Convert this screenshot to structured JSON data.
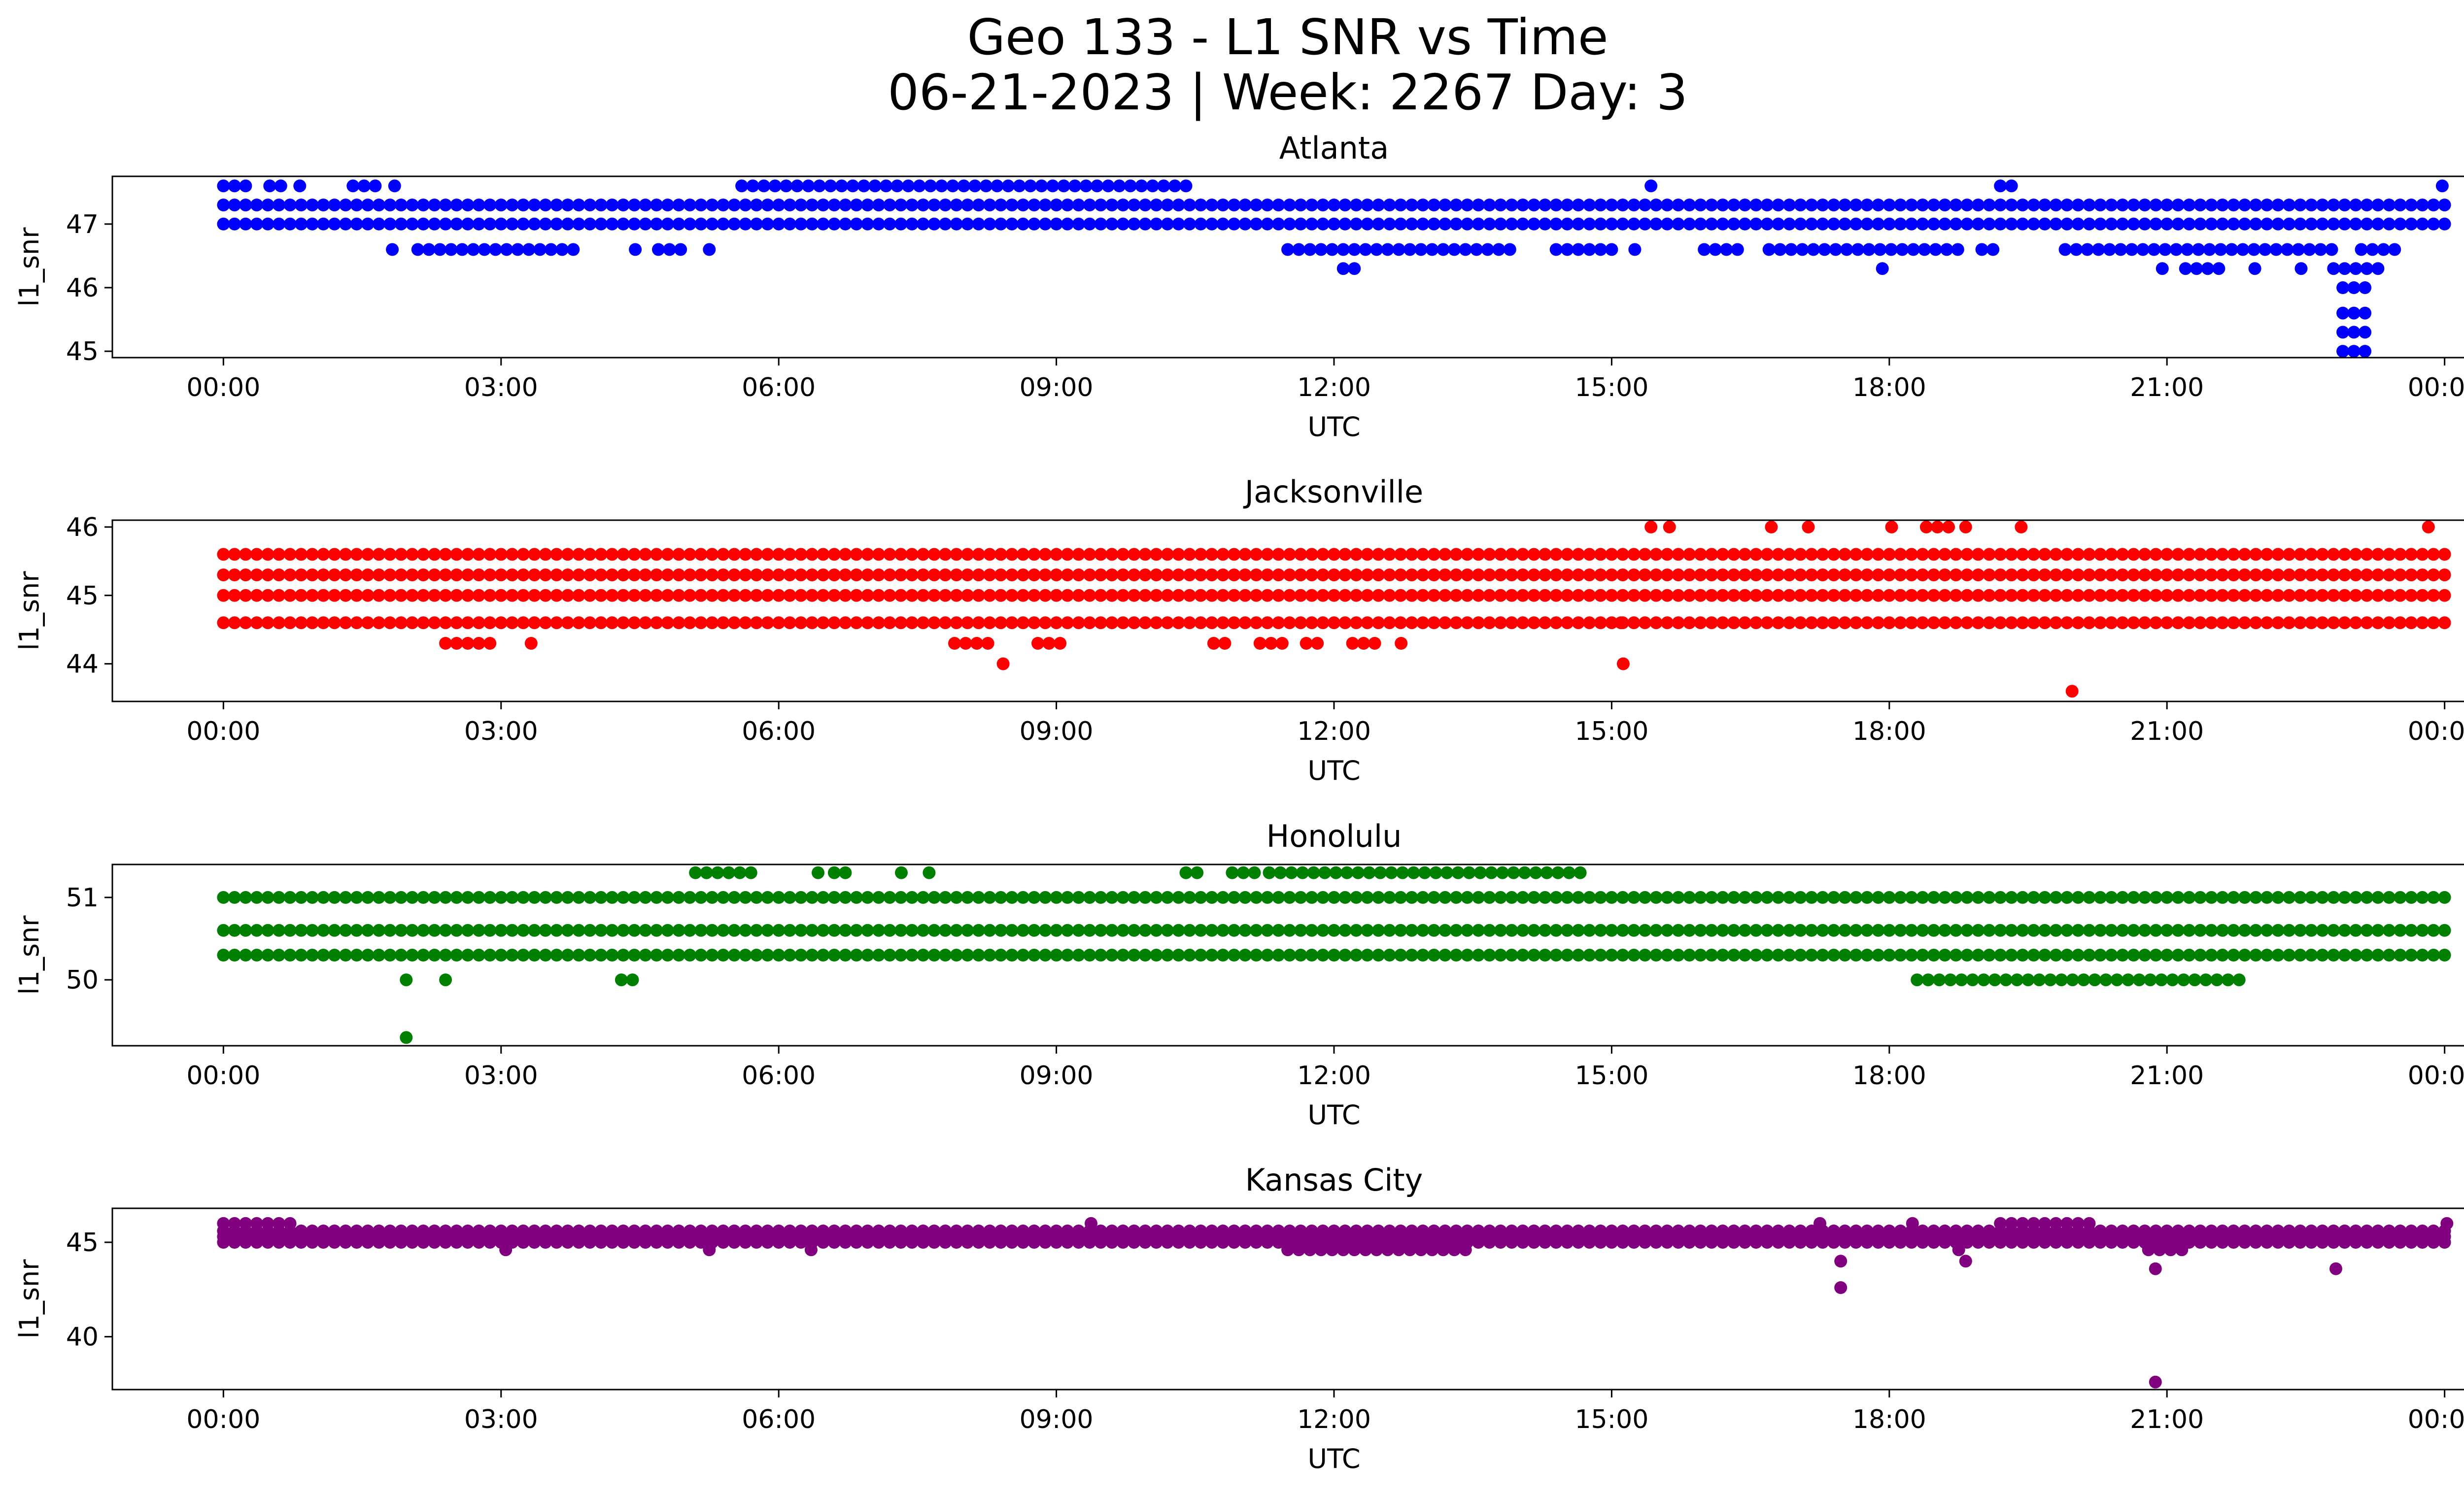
{
  "figure": {
    "title_line1": "Geo 133 - L1 SNR vs Time",
    "title_line2": "06-21-2023 | Week: 2267 Day: 3"
  },
  "chart_data": [
    {
      "type": "scatter",
      "title": "Atlanta",
      "xlabel": "UTC",
      "ylabel": "l1_snr",
      "color": "#0000ff",
      "xlim_hours": [
        -1.2,
        25.2
      ],
      "ylim": [
        44.9,
        47.75
      ],
      "xticks": [
        "00:00",
        "03:00",
        "06:00",
        "09:00",
        "12:00",
        "15:00",
        "18:00",
        "21:00",
        "00:00"
      ],
      "yticks": [
        45,
        46,
        47
      ],
      "levels": [
        47.0,
        47.3
      ],
      "runs": [
        {
          "y": 47.6,
          "ranges": [
            [
              0.0,
              0.25
            ],
            [
              0.5,
              0.65
            ],
            [
              0.8,
              0.85
            ],
            [
              1.4,
              1.7
            ],
            [
              1.8,
              1.9
            ],
            [
              5.6,
              10.5
            ],
            [
              15.4,
              15.45
            ],
            [
              19.2,
              19.4
            ],
            [
              23.95,
              24.0
            ]
          ]
        },
        {
          "y": 46.6,
          "ranges": [
            [
              1.8,
              1.85
            ],
            [
              2.1,
              3.8
            ],
            [
              4.4,
              4.5
            ],
            [
              4.7,
              5.0
            ],
            [
              5.2,
              5.3
            ],
            [
              11.5,
              14.0
            ],
            [
              14.4,
              15.0
            ],
            [
              15.2,
              15.3
            ],
            [
              16.0,
              16.4
            ],
            [
              16.7,
              17.8
            ],
            [
              17.9,
              18.8
            ],
            [
              19.0,
              19.2
            ],
            [
              19.9,
              22.8
            ],
            [
              23.1,
              23.5
            ]
          ]
        },
        {
          "y": 46.3,
          "ranges": [
            [
              12.1,
              12.3
            ],
            [
              20.9,
              21.0
            ],
            [
              21.2,
              21.6
            ],
            [
              21.9,
              22.0
            ],
            [
              22.4,
              22.5
            ],
            [
              22.8,
              23.3
            ]
          ]
        },
        {
          "y": 46.3,
          "ranges": [
            [
              17.9,
              17.95
            ]
          ]
        },
        {
          "y": 46.0,
          "ranges": [
            [
              22.9,
              23.2
            ]
          ]
        },
        {
          "y": 45.6,
          "ranges": [
            [
              22.9,
              23.2
            ]
          ]
        },
        {
          "y": 45.3,
          "ranges": [
            [
              22.9,
              23.2
            ]
          ]
        },
        {
          "y": 45.0,
          "ranges": [
            [
              22.9,
              23.2
            ]
          ]
        }
      ]
    },
    {
      "type": "scatter",
      "title": "Jacksonville",
      "xlabel": "UTC",
      "ylabel": "l1_snr",
      "color": "#ff0000",
      "xlim_hours": [
        -1.2,
        25.2
      ],
      "ylim": [
        43.45,
        46.1
      ],
      "xticks": [
        "00:00",
        "03:00",
        "06:00",
        "09:00",
        "12:00",
        "15:00",
        "18:00",
        "21:00",
        "00:00"
      ],
      "yticks": [
        44,
        45,
        46
      ],
      "levels": [
        45.0,
        45.3,
        45.6,
        44.6
      ],
      "runs": [
        {
          "y": 46.0,
          "ranges": [
            [
              15.4,
              15.45
            ],
            [
              15.6,
              15.65
            ],
            [
              16.7,
              16.75
            ],
            [
              17.1,
              17.15
            ],
            [
              18.0,
              18.05
            ],
            [
              18.4,
              18.65
            ],
            [
              18.8,
              18.85
            ],
            [
              19.4,
              19.45
            ],
            [
              23.8,
              23.85
            ]
          ]
        },
        {
          "y": 44.3,
          "ranges": [
            [
              2.4,
              2.9
            ],
            [
              3.3,
              3.35
            ],
            [
              7.9,
              8.35
            ],
            [
              8.8,
              9.1
            ],
            [
              10.7,
              10.9
            ],
            [
              11.2,
              11.5
            ],
            [
              11.7,
              11.9
            ],
            [
              12.2,
              12.5
            ],
            [
              12.7,
              12.75
            ]
          ]
        },
        {
          "y": 44.0,
          "ranges": [
            [
              8.4,
              8.45
            ],
            [
              15.1,
              15.15
            ]
          ]
        },
        {
          "y": 44.6,
          "ranges": [
            [
              15.05,
              15.15
            ]
          ]
        },
        {
          "y": 43.6,
          "ranges": [
            [
              19.95,
              20.0
            ]
          ]
        }
      ]
    },
    {
      "type": "scatter",
      "title": "Honolulu",
      "xlabel": "UTC",
      "ylabel": "l1_snr",
      "color": "#008000",
      "xlim_hours": [
        -1.2,
        25.2
      ],
      "ylim": [
        49.2,
        51.4
      ],
      "xticks": [
        "00:00",
        "03:00",
        "06:00",
        "09:00",
        "12:00",
        "15:00",
        "18:00",
        "21:00",
        "00:00"
      ],
      "yticks": [
        50,
        51
      ],
      "levels": [
        50.6,
        50.3,
        51.0
      ],
      "runs": [
        {
          "y": 51.3,
          "ranges": [
            [
              5.1,
              5.8
            ],
            [
              6.4,
              6.45
            ],
            [
              6.6,
              6.8
            ],
            [
              7.3,
              7.35
            ],
            [
              7.6,
              7.65
            ],
            [
              10.4,
              10.6
            ],
            [
              10.9,
              11.2
            ],
            [
              11.3,
              14.7
            ]
          ]
        },
        {
          "y": 50.0,
          "ranges": [
            [
              1.95,
              2.0
            ],
            [
              2.35,
              2.45
            ],
            [
              4.3,
              4.5
            ],
            [
              18.3,
              21.8
            ]
          ]
        },
        {
          "y": 49.3,
          "ranges": [
            [
              1.95,
              2.0
            ]
          ]
        }
      ]
    },
    {
      "type": "scatter",
      "title": "Kansas City",
      "xlabel": "UTC",
      "ylabel": "l1_snr",
      "color": "#800080",
      "xlim_hours": [
        -1.2,
        25.2
      ],
      "ylim": [
        37.2,
        46.8
      ],
      "xticks": [
        "00:00",
        "03:00",
        "06:00",
        "09:00",
        "12:00",
        "15:00",
        "18:00",
        "21:00",
        "00:00"
      ],
      "yticks": [
        40,
        45
      ],
      "levels": [
        45.0,
        45.3,
        45.6
      ],
      "runs": [
        {
          "y": 46.0,
          "ranges": [
            [
              0.0,
              0.8
            ],
            [
              9.35,
              9.4
            ],
            [
              17.2,
              17.3
            ],
            [
              18.2,
              18.3
            ],
            [
              19.2,
              20.2
            ],
            [
              24.0,
              24.05
            ]
          ]
        },
        {
          "y": 44.6,
          "ranges": [
            [
              3.0,
              3.1
            ],
            [
              5.2,
              5.3
            ],
            [
              6.3,
              6.4
            ],
            [
              11.5,
              13.5
            ],
            [
              18.7,
              18.8
            ],
            [
              20.8,
              21.2
            ]
          ]
        },
        {
          "y": 44.0,
          "ranges": [
            [
              17.45,
              17.5
            ],
            [
              18.8,
              18.85
            ]
          ]
        },
        {
          "y": 42.6,
          "ranges": [
            [
              17.45,
              17.5
            ]
          ]
        },
        {
          "y": 43.6,
          "ranges": [
            [
              20.85,
              20.9
            ],
            [
              22.8,
              22.85
            ]
          ]
        },
        {
          "y": 37.6,
          "ranges": [
            [
              20.85,
              20.9
            ]
          ]
        }
      ]
    }
  ]
}
